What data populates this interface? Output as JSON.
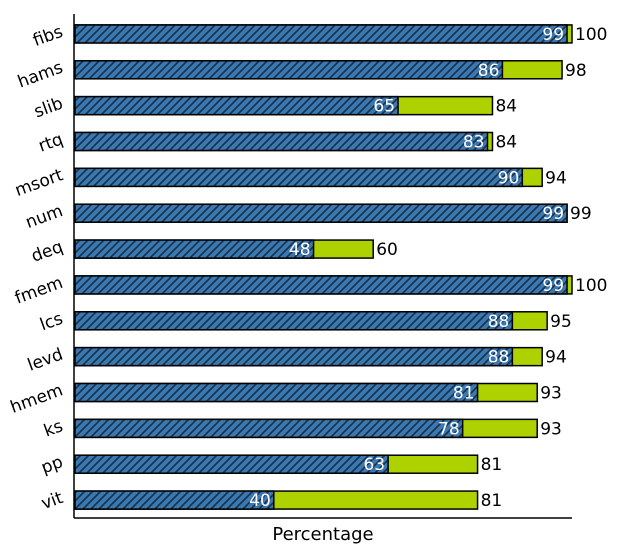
{
  "chart_data": {
    "type": "bar",
    "orientation": "horizontal",
    "title": "",
    "xlabel": "Percentage",
    "ylabel": "",
    "xlim": [
      0,
      100
    ],
    "grid": false,
    "categories": [
      "fibs",
      "hams",
      "slib",
      "rtq",
      "msort",
      "num",
      "deq",
      "fmem",
      "lcs",
      "levd",
      "hmem",
      "ks",
      "pp",
      "vit"
    ],
    "series": [
      {
        "values": [
          99,
          86,
          65,
          83,
          90,
          99,
          48,
          99,
          88,
          88,
          81,
          78,
          63,
          40
        ],
        "color": "#3a78b2",
        "pattern": "diagonal-hatch"
      },
      {
        "values": [
          100,
          98,
          84,
          84,
          94,
          99,
          60,
          100,
          95,
          94,
          93,
          93,
          81,
          81
        ],
        "color": "#aed100"
      }
    ]
  }
}
